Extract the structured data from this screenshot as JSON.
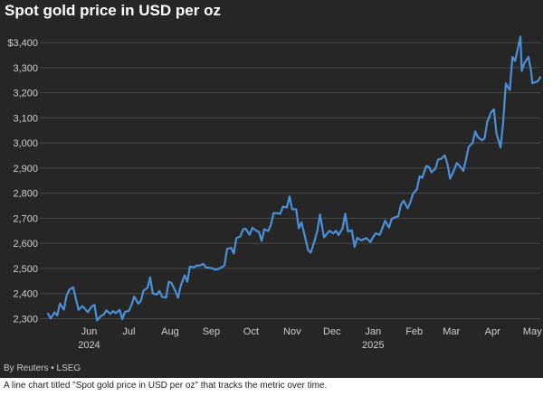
{
  "chart_data": {
    "type": "line",
    "title": "Spot gold price in USD per oz",
    "source": "By Reuters • LSEG",
    "caption": "A line chart titled \"Spot gold price in USD per oz\" that tracks the metric over time.",
    "xlabel": "",
    "ylabel": "",
    "y_tick_labels": [
      "$3,400",
      "3,300",
      "3,200",
      "3,100",
      "3,000",
      "2,900",
      "2,800",
      "2,700",
      "2,600",
      "2,500",
      "2,400",
      "2,300"
    ],
    "y_tick_values": [
      3400,
      3300,
      3200,
      3100,
      3000,
      2900,
      2800,
      2700,
      2600,
      2500,
      2400,
      2300
    ],
    "ylim": [
      2280,
      3440
    ],
    "x_range": [
      "2024-05-01",
      "2025-05-07"
    ],
    "x_ticks": [
      {
        "date": "2024-06-01",
        "label": "Jun",
        "year": "2024"
      },
      {
        "date": "2024-07-01",
        "label": "Jul",
        "year": ""
      },
      {
        "date": "2024-08-01",
        "label": "Aug",
        "year": ""
      },
      {
        "date": "2024-09-01",
        "label": "Sep",
        "year": ""
      },
      {
        "date": "2024-10-01",
        "label": "Oct",
        "year": ""
      },
      {
        "date": "2024-11-01",
        "label": "Nov",
        "year": ""
      },
      {
        "date": "2024-12-01",
        "label": "Dec",
        "year": ""
      },
      {
        "date": "2025-01-01",
        "label": "Jan",
        "year": "2025"
      },
      {
        "date": "2025-02-01",
        "label": "Feb",
        "year": ""
      },
      {
        "date": "2025-03-01",
        "label": "Mar",
        "year": ""
      },
      {
        "date": "2025-04-01",
        "label": "Apr",
        "year": ""
      },
      {
        "date": "2025-05-01",
        "label": "May",
        "year": ""
      }
    ],
    "grid": true,
    "line_color": "#4a90d9",
    "series": [
      {
        "points": [
          [
            "2024-05-01",
            2320
          ],
          [
            "2024-05-03",
            2301
          ],
          [
            "2024-05-06",
            2325
          ],
          [
            "2024-05-08",
            2313
          ],
          [
            "2024-05-10",
            2360
          ],
          [
            "2024-05-13",
            2336
          ],
          [
            "2024-05-15",
            2390
          ],
          [
            "2024-05-17",
            2415
          ],
          [
            "2024-05-20",
            2425
          ],
          [
            "2024-05-22",
            2380
          ],
          [
            "2024-05-24",
            2335
          ],
          [
            "2024-05-27",
            2350
          ],
          [
            "2024-05-29",
            2338
          ],
          [
            "2024-05-31",
            2326
          ],
          [
            "2024-06-03",
            2349
          ],
          [
            "2024-06-05",
            2355
          ],
          [
            "2024-06-07",
            2293
          ],
          [
            "2024-06-10",
            2311
          ],
          [
            "2024-06-12",
            2316
          ],
          [
            "2024-06-14",
            2333
          ],
          [
            "2024-06-17",
            2319
          ],
          [
            "2024-06-19",
            2330
          ],
          [
            "2024-06-21",
            2322
          ],
          [
            "2024-06-24",
            2335
          ],
          [
            "2024-06-26",
            2298
          ],
          [
            "2024-06-28",
            2327
          ],
          [
            "2024-07-01",
            2331
          ],
          [
            "2024-07-03",
            2355
          ],
          [
            "2024-07-05",
            2388
          ],
          [
            "2024-07-08",
            2360
          ],
          [
            "2024-07-10",
            2371
          ],
          [
            "2024-07-12",
            2411
          ],
          [
            "2024-07-15",
            2423
          ],
          [
            "2024-07-17",
            2465
          ],
          [
            "2024-07-19",
            2400
          ],
          [
            "2024-07-22",
            2396
          ],
          [
            "2024-07-24",
            2410
          ],
          [
            "2024-07-26",
            2387
          ],
          [
            "2024-07-29",
            2384
          ],
          [
            "2024-07-31",
            2447
          ],
          [
            "2024-08-02",
            2442
          ],
          [
            "2024-08-05",
            2410
          ],
          [
            "2024-08-07",
            2383
          ],
          [
            "2024-08-09",
            2431
          ],
          [
            "2024-08-12",
            2473
          ],
          [
            "2024-08-14",
            2447
          ],
          [
            "2024-08-16",
            2508
          ],
          [
            "2024-08-19",
            2504
          ],
          [
            "2024-08-21",
            2512
          ],
          [
            "2024-08-23",
            2511
          ],
          [
            "2024-08-26",
            2518
          ],
          [
            "2024-08-28",
            2504
          ],
          [
            "2024-08-30",
            2503
          ],
          [
            "2024-09-02",
            2500
          ],
          [
            "2024-09-04",
            2495
          ],
          [
            "2024-09-06",
            2497
          ],
          [
            "2024-09-09",
            2505
          ],
          [
            "2024-09-11",
            2512
          ],
          [
            "2024-09-13",
            2578
          ],
          [
            "2024-09-16",
            2582
          ],
          [
            "2024-09-18",
            2559
          ],
          [
            "2024-09-20",
            2621
          ],
          [
            "2024-09-23",
            2628
          ],
          [
            "2024-09-25",
            2656
          ],
          [
            "2024-09-27",
            2658
          ],
          [
            "2024-09-30",
            2634
          ],
          [
            "2024-10-02",
            2662
          ],
          [
            "2024-10-04",
            2654
          ],
          [
            "2024-10-07",
            2645
          ],
          [
            "2024-10-09",
            2610
          ],
          [
            "2024-10-11",
            2656
          ],
          [
            "2024-10-14",
            2650
          ],
          [
            "2024-10-16",
            2674
          ],
          [
            "2024-10-18",
            2721
          ],
          [
            "2024-10-21",
            2720
          ],
          [
            "2024-10-23",
            2718
          ],
          [
            "2024-10-25",
            2746
          ],
          [
            "2024-10-28",
            2743
          ],
          [
            "2024-10-30",
            2787
          ],
          [
            "2024-11-01",
            2736
          ],
          [
            "2024-11-04",
            2736
          ],
          [
            "2024-11-06",
            2660
          ],
          [
            "2024-11-08",
            2684
          ],
          [
            "2024-11-11",
            2619
          ],
          [
            "2024-11-13",
            2573
          ],
          [
            "2024-11-15",
            2563
          ],
          [
            "2024-11-18",
            2612
          ],
          [
            "2024-11-20",
            2651
          ],
          [
            "2024-11-22",
            2715
          ],
          [
            "2024-11-25",
            2624
          ],
          [
            "2024-11-27",
            2637
          ],
          [
            "2024-11-29",
            2650
          ],
          [
            "2024-12-02",
            2640
          ],
          [
            "2024-12-04",
            2650
          ],
          [
            "2024-12-06",
            2633
          ],
          [
            "2024-12-09",
            2660
          ],
          [
            "2024-12-11",
            2718
          ],
          [
            "2024-12-13",
            2648
          ],
          [
            "2024-12-16",
            2652
          ],
          [
            "2024-12-18",
            2586
          ],
          [
            "2024-12-20",
            2622
          ],
          [
            "2024-12-23",
            2612
          ],
          [
            "2024-12-25",
            2617
          ],
          [
            "2024-12-27",
            2621
          ],
          [
            "2024-12-30",
            2605
          ],
          [
            "2025-01-01",
            2625
          ],
          [
            "2025-01-03",
            2640
          ],
          [
            "2025-01-06",
            2634
          ],
          [
            "2025-01-08",
            2661
          ],
          [
            "2025-01-10",
            2690
          ],
          [
            "2025-01-13",
            2663
          ],
          [
            "2025-01-15",
            2697
          ],
          [
            "2025-01-17",
            2703
          ],
          [
            "2025-01-20",
            2708
          ],
          [
            "2025-01-22",
            2754
          ],
          [
            "2025-01-24",
            2770
          ],
          [
            "2025-01-27",
            2740
          ],
          [
            "2025-01-29",
            2762
          ],
          [
            "2025-01-31",
            2798
          ],
          [
            "2025-02-03",
            2815
          ],
          [
            "2025-02-05",
            2867
          ],
          [
            "2025-02-07",
            2861
          ],
          [
            "2025-02-10",
            2908
          ],
          [
            "2025-02-12",
            2905
          ],
          [
            "2025-02-14",
            2883
          ],
          [
            "2025-02-17",
            2898
          ],
          [
            "2025-02-19",
            2934
          ],
          [
            "2025-02-21",
            2936
          ],
          [
            "2025-02-24",
            2951
          ],
          [
            "2025-02-26",
            2917
          ],
          [
            "2025-02-28",
            2858
          ],
          [
            "2025-03-03",
            2892
          ],
          [
            "2025-03-05",
            2920
          ],
          [
            "2025-03-07",
            2910
          ],
          [
            "2025-03-10",
            2889
          ],
          [
            "2025-03-12",
            2934
          ],
          [
            "2025-03-14",
            2984
          ],
          [
            "2025-03-17",
            3001
          ],
          [
            "2025-03-19",
            3046
          ],
          [
            "2025-03-21",
            3023
          ],
          [
            "2025-03-24",
            3011
          ],
          [
            "2025-03-26",
            3019
          ],
          [
            "2025-03-28",
            3084
          ],
          [
            "2025-03-31",
            3123
          ],
          [
            "2025-04-02",
            3134
          ],
          [
            "2025-04-04",
            3037
          ],
          [
            "2025-04-07",
            2982
          ],
          [
            "2025-04-09",
            3082
          ],
          [
            "2025-04-11",
            3237
          ],
          [
            "2025-04-14",
            3211
          ],
          [
            "2025-04-16",
            3343
          ],
          [
            "2025-04-18",
            3327
          ],
          [
            "2025-04-22",
            3424
          ],
          [
            "2025-04-23",
            3287
          ],
          [
            "2025-04-25",
            3319
          ],
          [
            "2025-04-28",
            3343
          ],
          [
            "2025-04-30",
            3288
          ],
          [
            "2025-05-01",
            3238
          ],
          [
            "2025-05-05",
            3246
          ],
          [
            "2025-05-07",
            3262
          ]
        ]
      }
    ]
  }
}
